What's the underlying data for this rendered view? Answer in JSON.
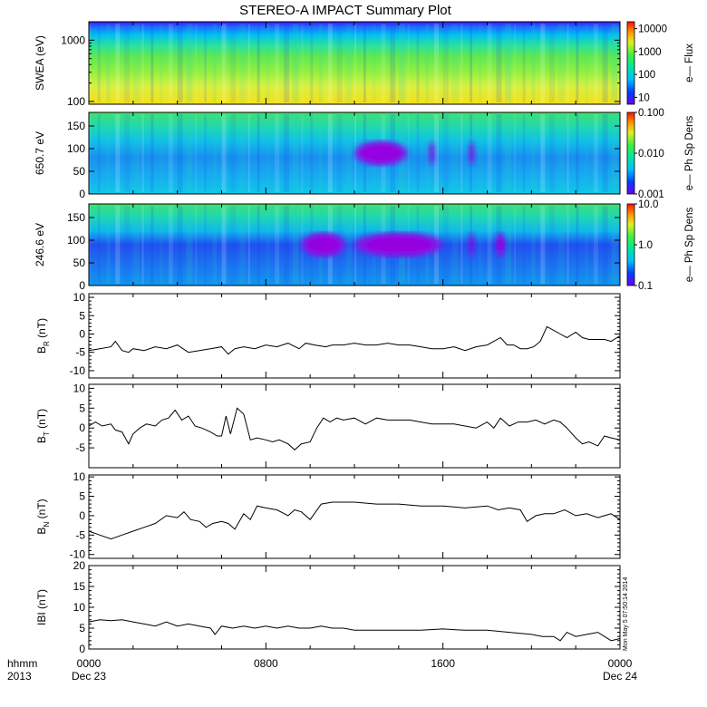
{
  "chart_data": {
    "type": "line",
    "title": "STEREO-A IMPACT Summary Plot",
    "stamp": "Mon May 5 07:50:14 2014",
    "x_axis": {
      "range_hours": [
        0,
        24
      ],
      "ticks": [
        {
          "hour": 0,
          "label": "0000",
          "sublabel": "Dec 23"
        },
        {
          "hour": 8,
          "label": "0800",
          "sublabel": ""
        },
        {
          "hour": 16,
          "label": "1600",
          "sublabel": ""
        },
        {
          "hour": 24,
          "label": "0000",
          "sublabel": "Dec 24"
        }
      ],
      "left_label_top": "hhmm",
      "left_label_bottom": "2013"
    },
    "spectrograms": [
      {
        "ylabel": "SWEA (eV)",
        "y_scale": "log",
        "ylim": [
          90,
          2000
        ],
        "y_ticks": [
          {
            "v": 100,
            "label": "100"
          },
          {
            "v": 1000,
            "label": "1000"
          }
        ],
        "colorbar": {
          "label": "e— Flux",
          "scale": "log",
          "range": [
            5,
            20000
          ],
          "ticks": [
            {
              "v": 10,
              "label": "10"
            },
            {
              "v": 100,
              "label": "100"
            },
            {
              "v": 1000,
              "label": "1000"
            },
            {
              "v": 10000,
              "label": "10000"
            }
          ]
        }
      },
      {
        "ylabel": "650.7 eV",
        "y_scale": "linear",
        "ylim": [
          0,
          180
        ],
        "y_ticks": [
          {
            "v": 0,
            "label": "0"
          },
          {
            "v": 50,
            "label": "50"
          },
          {
            "v": 100,
            "label": "100"
          },
          {
            "v": 150,
            "label": "150"
          }
        ],
        "dropouts_hours": [
          [
            12.0,
            14.4
          ],
          [
            15.4,
            15.6
          ],
          [
            17.2,
            17.4
          ]
        ],
        "colorbar": {
          "label": "e— Ph Sp Dens",
          "scale": "log",
          "range": [
            0.001,
            0.1
          ],
          "ticks": [
            {
              "v": 0.001,
              "label": "0.001"
            },
            {
              "v": 0.01,
              "label": "0.010"
            },
            {
              "v": 0.1,
              "label": "0.100"
            }
          ]
        }
      },
      {
        "ylabel": "246.6 eV",
        "y_scale": "linear",
        "ylim": [
          0,
          180
        ],
        "y_ticks": [
          {
            "v": 0,
            "label": "0"
          },
          {
            "v": 50,
            "label": "50"
          },
          {
            "v": 100,
            "label": "100"
          },
          {
            "v": 150,
            "label": "150"
          }
        ],
        "dropouts_hours": [
          [
            9.6,
            11.6
          ],
          [
            12.0,
            16.0
          ],
          [
            17.2,
            17.4
          ],
          [
            18.4,
            18.8
          ]
        ],
        "colorbar": {
          "label": "e— Ph Sp Dens",
          "scale": "log",
          "range": [
            0.1,
            10
          ],
          "ticks": [
            {
              "v": 0.1,
              "label": "0.1"
            },
            {
              "v": 1,
              "label": "1.0"
            },
            {
              "v": 10,
              "label": "10.0"
            }
          ]
        }
      }
    ],
    "series": [
      {
        "ylabel_main": "B",
        "ylabel_sub": "R",
        "ylabel_unit": "(nT)",
        "ylim": [
          -12,
          11
        ],
        "y_ticks": [
          {
            "v": -10,
            "label": "-10"
          },
          {
            "v": -5,
            "label": "-5"
          },
          {
            "v": 0,
            "label": "0"
          },
          {
            "v": 5,
            "label": "5"
          },
          {
            "v": 10,
            "label": "10"
          }
        ],
        "x": [
          0,
          0.5,
          1.0,
          1.2,
          1.5,
          1.8,
          2.0,
          2.5,
          3.0,
          3.5,
          4.0,
          4.5,
          5.0,
          5.5,
          6.0,
          6.3,
          6.6,
          7.0,
          7.5,
          8.0,
          8.5,
          9.0,
          9.5,
          9.8,
          10.2,
          10.7,
          11.0,
          11.5,
          12.0,
          12.5,
          13.0,
          13.5,
          14.0,
          14.5,
          15.0,
          15.5,
          16.0,
          16.5,
          17.0,
          17.5,
          18.0,
          18.3,
          18.6,
          18.9,
          19.2,
          19.5,
          19.8,
          20.1,
          20.4,
          20.7,
          21.0,
          21.3,
          21.6,
          22.0,
          22.3,
          22.6,
          23.0,
          23.3,
          23.6,
          24.0
        ],
        "values": [
          -4.5,
          -4.0,
          -3.5,
          -2.0,
          -4.5,
          -5.0,
          -4.0,
          -4.5,
          -3.5,
          -4.0,
          -3.0,
          -5.0,
          -4.5,
          -4.0,
          -3.5,
          -5.5,
          -4.0,
          -3.5,
          -4.0,
          -3.0,
          -3.5,
          -2.5,
          -4.0,
          -2.5,
          -3.0,
          -3.5,
          -3.0,
          -3.0,
          -2.5,
          -3.0,
          -3.0,
          -2.5,
          -3.0,
          -3.0,
          -3.5,
          -4.0,
          -4.0,
          -3.5,
          -4.5,
          -3.5,
          -3.0,
          -2.0,
          -1.0,
          -3.0,
          -3.0,
          -4.0,
          -4.0,
          -3.5,
          -2.0,
          2.0,
          1.0,
          0.0,
          -1.0,
          0.5,
          -1.0,
          -1.5,
          -1.5,
          -1.5,
          -2.0,
          -0.5
        ]
      },
      {
        "ylabel_main": "B",
        "ylabel_sub": "T",
        "ylabel_unit": "(nT)",
        "ylim": [
          -10,
          11
        ],
        "y_ticks": [
          {
            "v": -5,
            "label": "-5"
          },
          {
            "v": 0,
            "label": "0"
          },
          {
            "v": 5,
            "label": "5"
          },
          {
            "v": 10,
            "label": "10"
          }
        ],
        "x": [
          0,
          0.3,
          0.6,
          1.0,
          1.2,
          1.5,
          1.8,
          2.0,
          2.3,
          2.6,
          3.0,
          3.3,
          3.6,
          3.9,
          4.2,
          4.5,
          4.8,
          5.1,
          5.5,
          5.8,
          6.0,
          6.2,
          6.4,
          6.7,
          7.0,
          7.3,
          7.6,
          8.0,
          8.3,
          8.6,
          9.0,
          9.3,
          9.6,
          10.0,
          10.3,
          10.6,
          10.9,
          11.2,
          11.5,
          12.0,
          12.5,
          13.0,
          13.5,
          14.0,
          14.5,
          15.0,
          15.5,
          16.0,
          16.5,
          17.0,
          17.5,
          18.0,
          18.3,
          18.6,
          19.0,
          19.4,
          19.8,
          20.2,
          20.6,
          21.0,
          21.3,
          21.6,
          22.0,
          22.3,
          22.6,
          23.0,
          23.3,
          23.6,
          24.0
        ],
        "values": [
          0.5,
          1.5,
          0.5,
          1.0,
          -0.5,
          -1.0,
          -4.0,
          -1.5,
          0.0,
          1.0,
          0.5,
          2.0,
          2.5,
          4.5,
          2.0,
          3.0,
          0.5,
          0.0,
          -1.0,
          -2.0,
          -2.0,
          3.0,
          -1.5,
          5.0,
          3.5,
          -3.0,
          -2.5,
          -3.0,
          -3.5,
          -3.0,
          -4.0,
          -5.5,
          -4.0,
          -3.5,
          0.0,
          2.5,
          1.5,
          2.5,
          2.0,
          2.5,
          1.0,
          2.5,
          2.0,
          2.0,
          2.0,
          1.5,
          1.0,
          1.0,
          1.0,
          0.5,
          0.0,
          1.5,
          0.0,
          2.5,
          0.5,
          1.5,
          1.5,
          2.0,
          1.0,
          2.0,
          1.5,
          0.0,
          -2.5,
          -4.0,
          -3.5,
          -4.5,
          -2.0,
          -2.5,
          -3.0
        ]
      },
      {
        "ylabel_main": "B",
        "ylabel_sub": "N",
        "ylabel_unit": "(nT)",
        "ylim": [
          -11,
          10.5
        ],
        "y_ticks": [
          {
            "v": -10,
            "label": "-10"
          },
          {
            "v": -5,
            "label": "-5"
          },
          {
            "v": 0,
            "label": "0"
          },
          {
            "v": 5,
            "label": "5"
          },
          {
            "v": 10,
            "label": "10"
          }
        ],
        "x": [
          0,
          0.5,
          1.0,
          1.5,
          2.0,
          2.5,
          3.0,
          3.5,
          4.0,
          4.3,
          4.6,
          5.0,
          5.3,
          5.6,
          6.0,
          6.3,
          6.6,
          7.0,
          7.3,
          7.6,
          8.0,
          8.5,
          9.0,
          9.3,
          9.6,
          10.0,
          10.5,
          11.0,
          11.5,
          12.0,
          13.0,
          14.0,
          15.0,
          16.0,
          17.0,
          18.0,
          18.5,
          19.0,
          19.5,
          19.8,
          20.2,
          20.6,
          21.0,
          21.5,
          22.0,
          22.5,
          23.0,
          23.3,
          23.6,
          24.0
        ],
        "values": [
          -4.0,
          -5.0,
          -6.0,
          -5.0,
          -4.0,
          -3.0,
          -2.0,
          0.0,
          -0.5,
          1.0,
          -1.0,
          -1.5,
          -3.0,
          -2.0,
          -1.5,
          -2.0,
          -3.5,
          0.5,
          -1.0,
          2.5,
          2.0,
          1.5,
          0.0,
          1.5,
          1.0,
          -1.0,
          3.0,
          3.5,
          3.5,
          3.5,
          3.0,
          3.0,
          2.5,
          2.5,
          2.0,
          2.5,
          1.5,
          2.0,
          1.5,
          -1.5,
          0.0,
          0.5,
          0.5,
          1.5,
          0.0,
          0.5,
          -0.5,
          0.0,
          0.5,
          -1.0
        ]
      },
      {
        "ylabel_main": "IBI",
        "ylabel_sub": "",
        "ylabel_unit": "(nT)",
        "ylim": [
          0,
          20
        ],
        "y_ticks": [
          {
            "v": 0,
            "label": "0"
          },
          {
            "v": 5,
            "label": "5"
          },
          {
            "v": 10,
            "label": "10"
          },
          {
            "v": 15,
            "label": "15"
          },
          {
            "v": 20,
            "label": "20"
          }
        ],
        "x": [
          0,
          0.5,
          1.0,
          1.5,
          2.0,
          2.5,
          3.0,
          3.5,
          4.0,
          4.5,
          5.0,
          5.5,
          5.7,
          6.0,
          6.5,
          7.0,
          7.5,
          8.0,
          8.5,
          9.0,
          9.5,
          10.0,
          10.5,
          11.0,
          11.5,
          12.0,
          13.0,
          14.0,
          15.0,
          16.0,
          17.0,
          18.0,
          19.0,
          20.0,
          20.5,
          21.0,
          21.3,
          21.6,
          22.0,
          22.5,
          23.0,
          23.3,
          23.6,
          24.0
        ],
        "values": [
          6.5,
          7.0,
          6.8,
          7.0,
          6.5,
          6.0,
          5.5,
          6.5,
          5.5,
          6.0,
          5.5,
          5.0,
          3.5,
          5.5,
          5.0,
          5.5,
          5.0,
          5.5,
          5.0,
          5.5,
          5.0,
          5.0,
          5.5,
          5.0,
          5.0,
          4.5,
          4.5,
          4.5,
          4.5,
          4.8,
          4.5,
          4.5,
          4.0,
          3.5,
          3.0,
          3.0,
          2.0,
          4.0,
          3.0,
          3.5,
          4.0,
          3.0,
          2.0,
          2.5
        ]
      }
    ]
  }
}
